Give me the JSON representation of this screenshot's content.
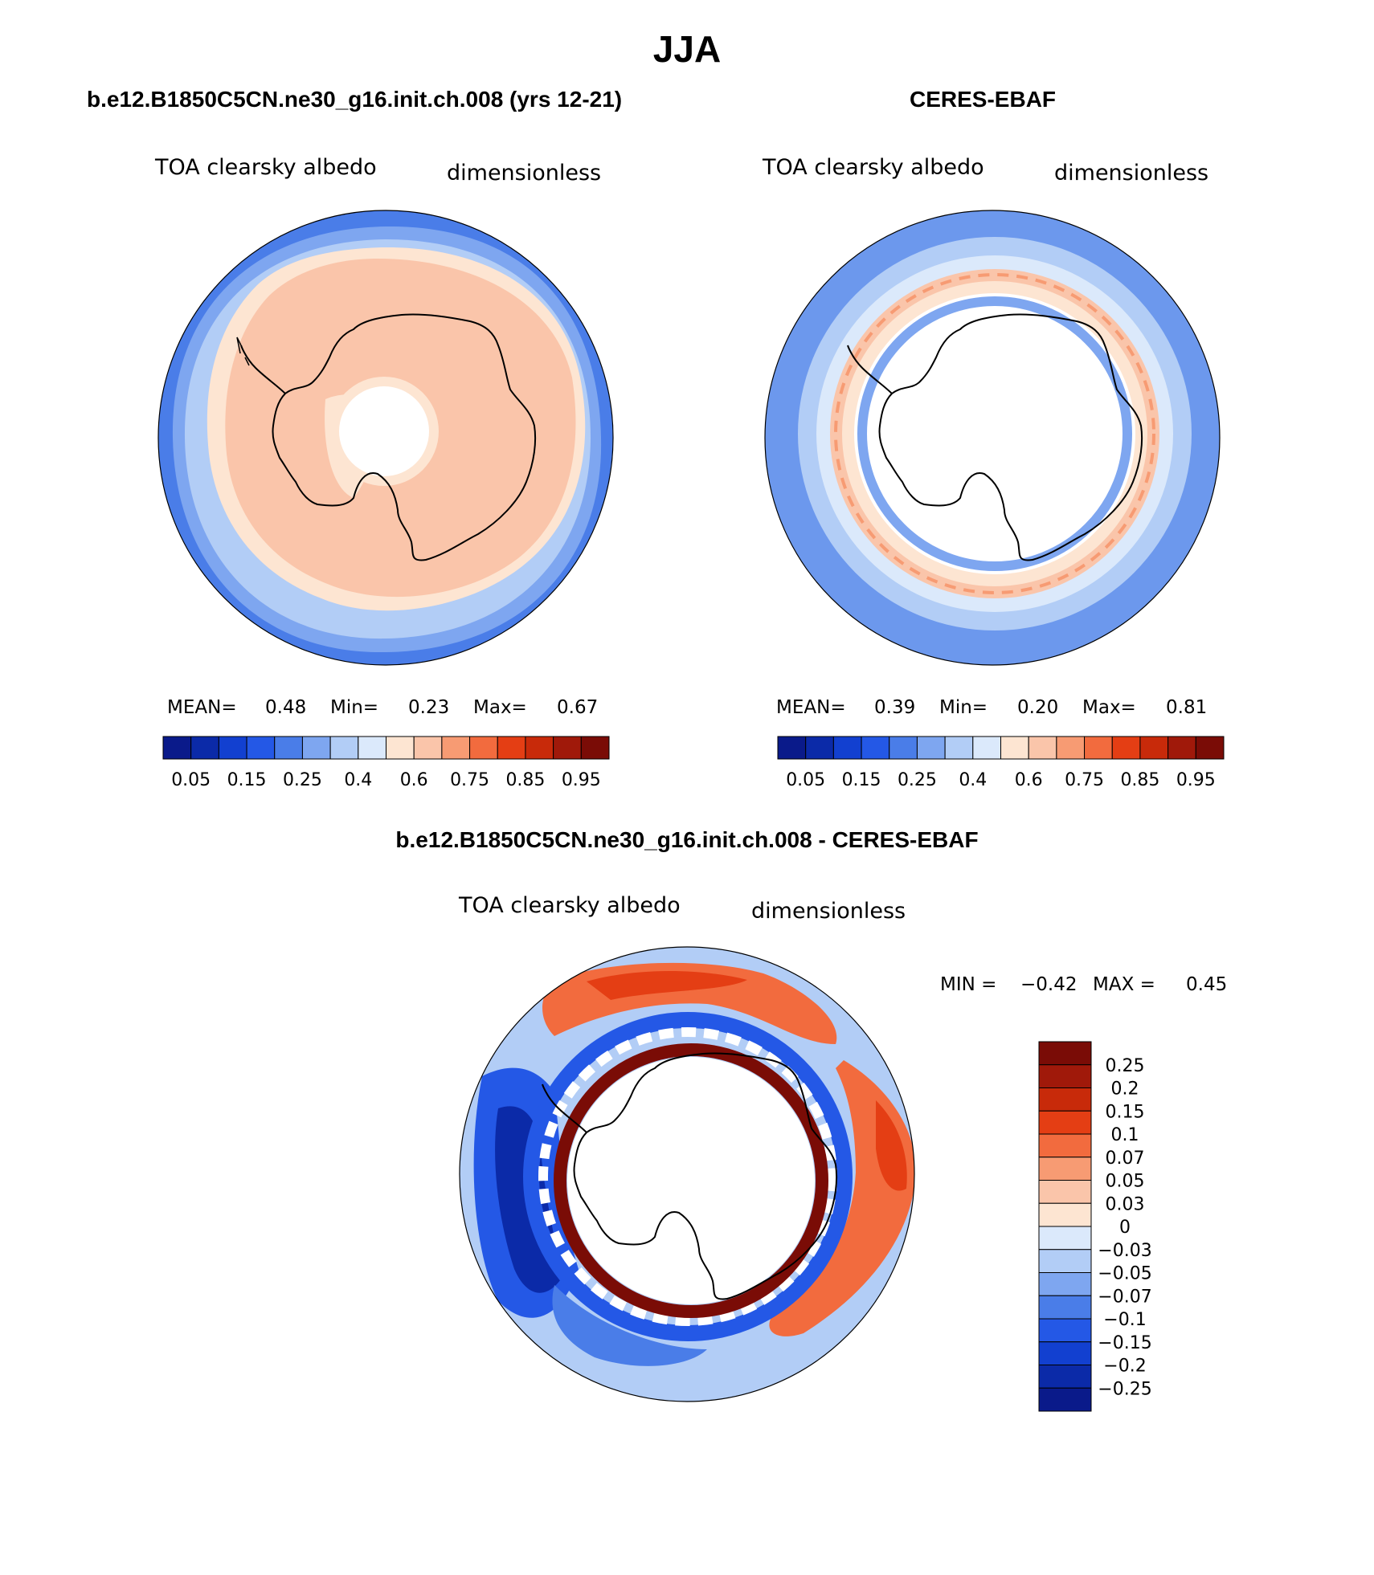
{
  "figure": {
    "season_title": "JJA",
    "left_panel": {
      "heading": "b.e12.B1850C5CN.ne30_g16.init.ch.008 (yrs 12-21)",
      "variable": "TOA clearsky albedo",
      "units": "dimensionless",
      "stats": {
        "mean_label": "MEAN=",
        "mean": "0.48",
        "min_label": "Min=",
        "min": "0.23",
        "max_label": "Max=",
        "max": "0.67"
      }
    },
    "right_panel": {
      "heading": "CERES-EBAF",
      "variable": "TOA clearsky albedo",
      "units": "dimensionless",
      "stats": {
        "mean_label": "MEAN=",
        "mean": "0.39",
        "min_label": "Min=",
        "min": "0.20",
        "max_label": "Max=",
        "max": "0.81"
      }
    },
    "diff_panel": {
      "heading": "b.e12.B1850C5CN.ne30_g16.init.ch.008 - CERES-EBAF",
      "variable": "TOA clearsky albedo",
      "units": "dimensionless",
      "minmax": {
        "min_label": "MIN =",
        "min": "−0.42",
        "max_label": "MAX =",
        "max": "0.45"
      }
    }
  },
  "chart_data": [
    {
      "type": "heatmap",
      "title": "b.e12.B1850C5CN.ne30_g16.init.ch.008 (yrs 12-21)",
      "projection": "south polar stereographic",
      "colorbar": {
        "colors": [
          "#0a1a8a",
          "#0b2aa8",
          "#1240d0",
          "#2458e6",
          "#4a7de8",
          "#7ea6f0",
          "#b2cdf6",
          "#dbe9fb",
          "#fde5d2",
          "#fac5aa",
          "#f79b73",
          "#f26b3e",
          "#e43e14",
          "#c82a0a",
          "#a0190a",
          "#7a0c06"
        ],
        "tick_labels": [
          "0.05",
          "0.15",
          "0.25",
          "0.4",
          "0.6",
          "0.75",
          "0.85",
          "0.95"
        ]
      },
      "regions": [
        {
          "band": "outer ocean ring",
          "level": "0.25-0.4"
        },
        {
          "band": "sea-ice zone",
          "level": "0.6-0.67"
        },
        {
          "band": "polar night (masked)",
          "level": "missing"
        }
      ]
    },
    {
      "type": "heatmap",
      "title": "CERES-EBAF",
      "projection": "south polar stereographic",
      "colorbar": {
        "colors": [
          "#0a1a8a",
          "#0b2aa8",
          "#1240d0",
          "#2458e6",
          "#4a7de8",
          "#7ea6f0",
          "#b2cdf6",
          "#dbe9fb",
          "#fde5d2",
          "#fac5aa",
          "#f79b73",
          "#f26b3e",
          "#e43e14",
          "#c82a0a",
          "#a0190a",
          "#7a0c06"
        ],
        "tick_labels": [
          "0.05",
          "0.15",
          "0.25",
          "0.4",
          "0.6",
          "0.75",
          "0.85",
          "0.95"
        ]
      },
      "regions": [
        {
          "band": "outer ocean ring",
          "level": "0.25-0.5"
        },
        {
          "band": "ice-edge ring",
          "level": "0.6-0.75"
        },
        {
          "band": "interior (masked)",
          "level": "missing"
        }
      ]
    },
    {
      "type": "heatmap",
      "title": "b.e12.B1850C5CN.ne30_g16.init.ch.008 - CERES-EBAF",
      "projection": "south polar stereographic",
      "colorbar": {
        "colors": [
          "#7a0c06",
          "#a0190a",
          "#c82a0a",
          "#e43e14",
          "#f26b3e",
          "#f79b73",
          "#fac5aa",
          "#fde5d2",
          "#dbe9fb",
          "#b2cdf6",
          "#7ea6f0",
          "#4a7de8",
          "#2458e6",
          "#1240d0",
          "#0b2aa8",
          "#0a1a8a"
        ],
        "tick_labels": [
          "0.25",
          "0.2",
          "0.15",
          "0.1",
          "0.07",
          "0.05",
          "0.03",
          "0",
          "−0.03",
          "−0.05",
          "−0.07",
          "−0.1",
          "−0.15",
          "−0.2",
          "−0.25"
        ]
      },
      "regions": [
        {
          "band": "inner ring near coast",
          "level": "> 0.25"
        },
        {
          "band": "outer ocean (west)",
          "level": "-0.15 to -0.25"
        },
        {
          "band": "outer ocean (east/north)",
          "level": "0.05 to 0.15"
        }
      ]
    }
  ]
}
